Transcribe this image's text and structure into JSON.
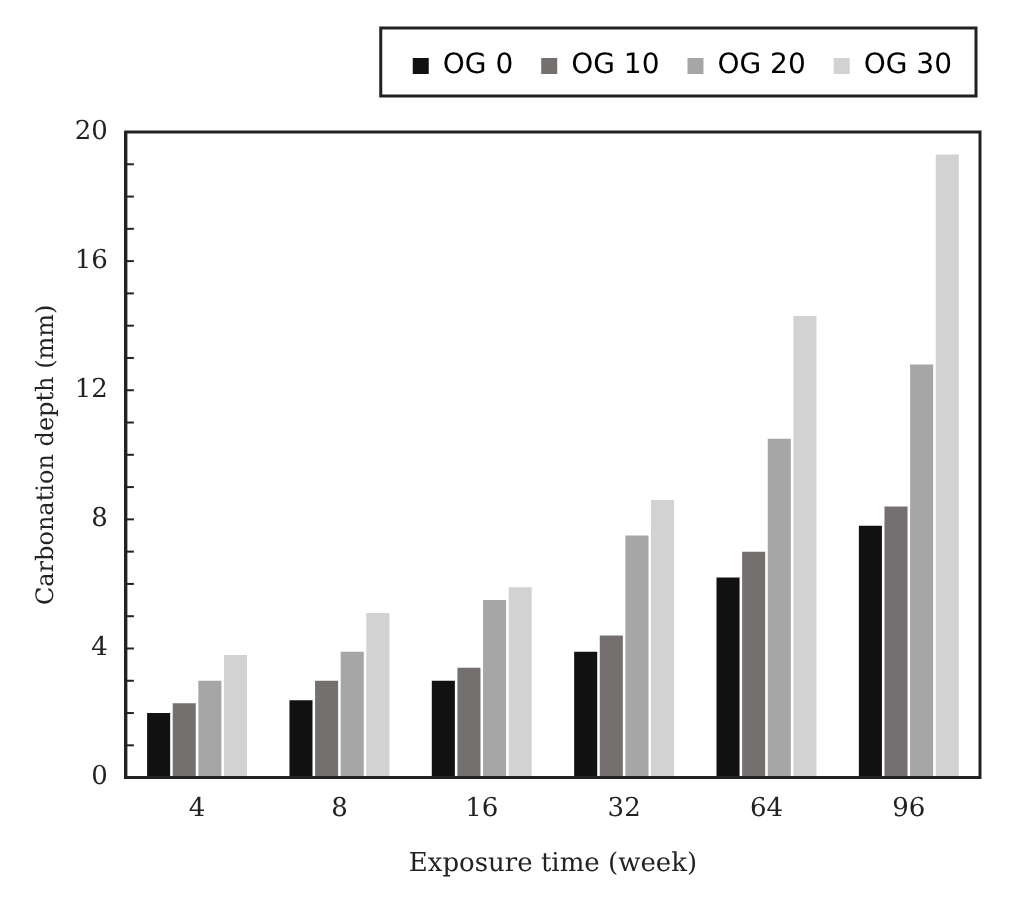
{
  "chart_data": {
    "type": "bar",
    "xlabel": "Exposure time (week)",
    "ylabel": "Carbonation depth (mm)",
    "categories": [
      "4",
      "8",
      "16",
      "32",
      "64",
      "96"
    ],
    "series": [
      {
        "name": "OG 0",
        "color": "#111111",
        "values": [
          2.0,
          2.4,
          3.0,
          3.9,
          6.2,
          7.8
        ]
      },
      {
        "name": "OG 10",
        "color": "#757070",
        "values": [
          2.3,
          3.0,
          3.4,
          4.4,
          7.0,
          8.4
        ]
      },
      {
        "name": "OG 20",
        "color": "#a6a6a6",
        "values": [
          3.0,
          3.9,
          5.5,
          7.5,
          10.5,
          12.8
        ]
      },
      {
        "name": "OG 30",
        "color": "#d2d2d2",
        "values": [
          3.8,
          5.1,
          5.9,
          8.6,
          14.3,
          19.3
        ]
      }
    ],
    "ylim": [
      0,
      20
    ],
    "yticks": [
      0,
      4,
      8,
      12,
      16,
      20
    ],
    "grid": false,
    "legend": "top"
  }
}
